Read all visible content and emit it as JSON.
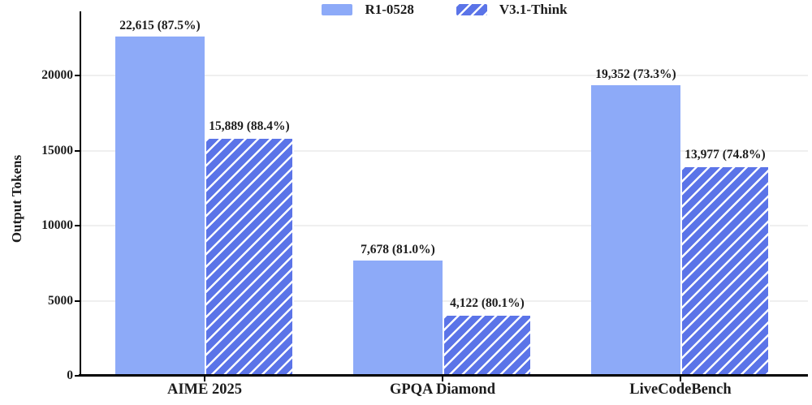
{
  "chart_data": {
    "type": "bar",
    "title": "",
    "ylabel": "Output Tokens",
    "xlabel": "",
    "categories": [
      "AIME 2025",
      "GPQA Diamond",
      "LiveCodeBench"
    ],
    "series": [
      {
        "name": "R1-0528",
        "values": [
          22615,
          7678,
          19352
        ],
        "accuracy_pct": [
          87.5,
          81.0,
          73.3
        ],
        "value_labels": [
          "22,615 (87.5%)",
          "7,678 (81.0%)",
          "19,352 (73.3%)"
        ],
        "fill": "solid",
        "color": "#8daaf8"
      },
      {
        "name": "V3.1-Think",
        "values": [
          15889,
          4122,
          13977
        ],
        "accuracy_pct": [
          88.4,
          80.1,
          74.8
        ],
        "value_labels": [
          "15,889 (88.4%)",
          "4,122 (80.1%)",
          "13,977 (74.8%)"
        ],
        "fill": "hatched",
        "color": "#5b74e8",
        "hatch_color": "#ffffff"
      }
    ],
    "y_axis": {
      "label": "Output Tokens",
      "ticks": [
        0,
        5000,
        10000,
        15000,
        20000
      ],
      "tick_labels": [
        "0",
        "5000",
        "10000",
        "15000",
        "20000"
      ],
      "ylim": [
        0,
        24000
      ]
    },
    "legend": {
      "position": "top-center",
      "entries": [
        "R1-0528",
        "V3.1-Think"
      ]
    },
    "grid": "horizontal",
    "colors": {
      "axis": "#000000",
      "grid": "#efefef",
      "text": "#1c1c1c",
      "background": "#ffffff"
    }
  }
}
